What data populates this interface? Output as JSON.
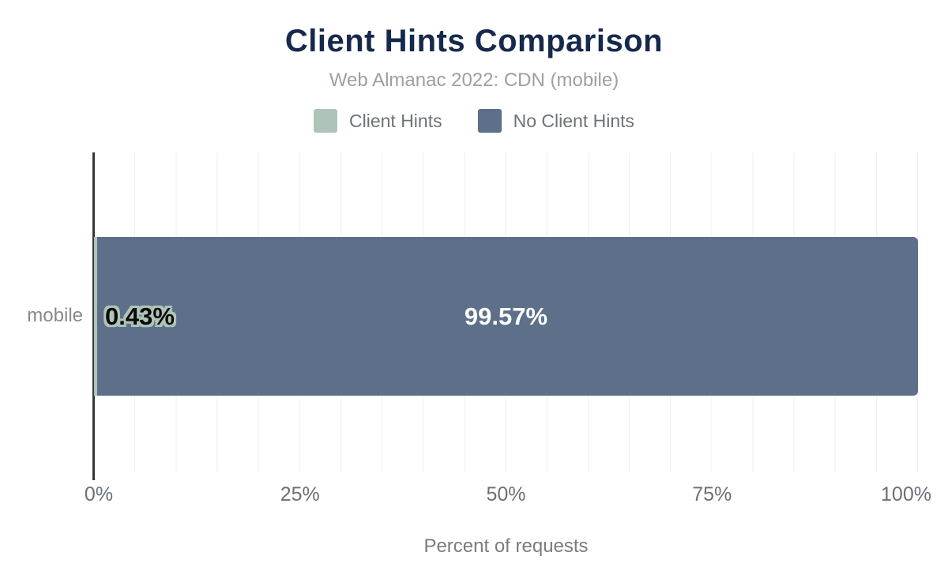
{
  "chart": {
    "title": "Client Hints Comparison",
    "subtitle": "Web Almanac 2022: CDN (mobile)",
    "legend": {
      "client_hints": {
        "label": "Client Hints",
        "color": "#afc4b8"
      },
      "no_client_hints": {
        "label": "No Client Hints",
        "color": "#5e7089"
      }
    },
    "category_label": "mobile",
    "values": {
      "client_hints": 0.43,
      "no_client_hints": 99.57
    },
    "data_labels": {
      "client_hints": "0.43%",
      "no_client_hints": "99.57%"
    },
    "x_tick_labels": {
      "t0": "0%",
      "t25": "25%",
      "t50": "50%",
      "t75": "75%",
      "t100": "100%"
    },
    "x_axis_title": "Percent of requests",
    "colors": {
      "title": "#16294c",
      "subtitle": "#9aa0a6",
      "axis_line": "#35373b",
      "gridline": "#efefef",
      "tick_text": "#697076"
    }
  },
  "chart_data": {
    "type": "bar",
    "orientation": "horizontal",
    "stacked": true,
    "title": "Client Hints Comparison",
    "subtitle": "Web Almanac 2022: CDN (mobile)",
    "categories": [
      "mobile"
    ],
    "series": [
      {
        "name": "Client Hints",
        "values": [
          0.43
        ],
        "color": "#afc4b8"
      },
      {
        "name": "No Client Hints",
        "values": [
          99.57
        ],
        "color": "#5e7089"
      }
    ],
    "data_labels": [
      "0.43%",
      "99.57%"
    ],
    "xlabel": "Percent of requests",
    "ylabel": "",
    "xlim": [
      0,
      100
    ],
    "x_ticks": [
      0,
      25,
      50,
      75,
      100
    ],
    "grid": "vertical gridlines every 5%",
    "legend_position": "top"
  }
}
